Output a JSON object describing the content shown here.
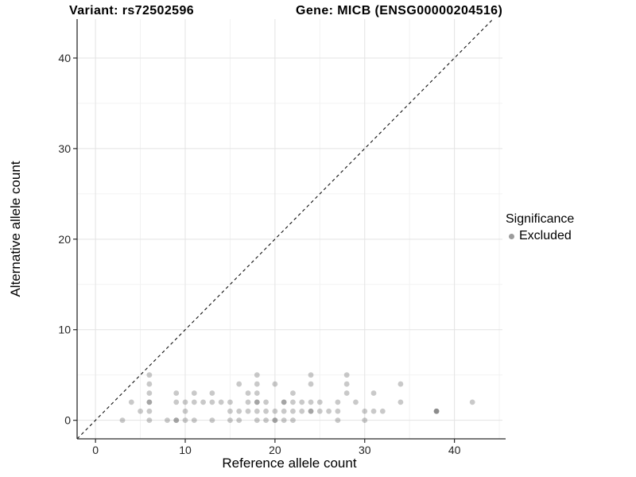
{
  "titles": {
    "variant": "Variant: rs72502596",
    "gene": "Gene: MICB (ENSG00000204516)"
  },
  "legend": {
    "title": "Significance",
    "items": [
      {
        "label": "Excluded",
        "color": "#9b9b9b"
      }
    ]
  },
  "colors": {
    "background": "#ffffff",
    "grid_major": "#e3e3e3",
    "grid_minor": "#f1f1f1",
    "axis_line": "#2b2b2b",
    "tick_text": "#262626",
    "identity_line": "#111111",
    "point_base": "#5a5a5a",
    "point_alpha": 0.33
  },
  "chart_data": {
    "type": "scatter",
    "title": "",
    "xlabel": "Reference allele count",
    "ylabel": "Alternative allele count",
    "xlim": [
      -2.05,
      45.35
    ],
    "ylim": [
      -2.05,
      44.3
    ],
    "x_ticks": [
      0,
      10,
      20,
      30,
      40
    ],
    "y_ticks": [
      0,
      10,
      20,
      30,
      40
    ],
    "x_minor": [
      5,
      15,
      25,
      35,
      45
    ],
    "y_minor": [
      5,
      15,
      25,
      35
    ],
    "grid": true,
    "identity_line": {
      "style": "dashed",
      "slope": 1,
      "intercept": 0
    },
    "legend_position": "right",
    "series": [
      {
        "name": "Excluded",
        "points_format": "[ref_count, alt_count, overlap_n]",
        "points": [
          [
            3,
            0,
            1
          ],
          [
            6,
            0,
            1
          ],
          [
            8,
            0,
            1
          ],
          [
            9,
            0,
            2
          ],
          [
            10,
            0,
            1
          ],
          [
            11,
            0,
            1
          ],
          [
            13,
            0,
            1
          ],
          [
            15,
            0,
            1
          ],
          [
            16,
            0,
            1
          ],
          [
            18,
            0,
            1
          ],
          [
            19,
            0,
            1
          ],
          [
            20,
            0,
            2
          ],
          [
            21,
            0,
            1
          ],
          [
            22,
            0,
            1
          ],
          [
            27,
            0,
            1
          ],
          [
            30,
            0,
            1
          ],
          [
            5,
            1,
            1
          ],
          [
            6,
            1,
            1
          ],
          [
            10,
            1,
            1
          ],
          [
            15,
            1,
            1
          ],
          [
            16,
            1,
            1
          ],
          [
            17,
            1,
            1
          ],
          [
            18,
            1,
            1
          ],
          [
            19,
            1,
            1
          ],
          [
            20,
            1,
            1
          ],
          [
            21,
            1,
            1
          ],
          [
            22,
            1,
            1
          ],
          [
            23,
            1,
            1
          ],
          [
            24,
            1,
            2
          ],
          [
            25,
            1,
            1
          ],
          [
            26,
            1,
            1
          ],
          [
            27,
            1,
            1
          ],
          [
            30,
            1,
            1
          ],
          [
            31,
            1,
            1
          ],
          [
            32,
            1,
            1
          ],
          [
            38,
            1,
            3
          ],
          [
            4,
            2,
            1
          ],
          [
            6,
            2,
            2
          ],
          [
            9,
            2,
            1
          ],
          [
            10,
            2,
            1
          ],
          [
            11,
            2,
            1
          ],
          [
            12,
            2,
            1
          ],
          [
            13,
            2,
            1
          ],
          [
            14,
            2,
            1
          ],
          [
            15,
            2,
            1
          ],
          [
            17,
            2,
            1
          ],
          [
            18,
            2,
            2
          ],
          [
            19,
            2,
            1
          ],
          [
            21,
            2,
            2
          ],
          [
            22,
            2,
            1
          ],
          [
            23,
            2,
            1
          ],
          [
            24,
            2,
            1
          ],
          [
            25,
            2,
            1
          ],
          [
            27,
            2,
            1
          ],
          [
            29,
            2,
            1
          ],
          [
            34,
            2,
            1
          ],
          [
            42,
            2,
            1
          ],
          [
            6,
            3,
            1
          ],
          [
            9,
            3,
            1
          ],
          [
            11,
            3,
            1
          ],
          [
            13,
            3,
            1
          ],
          [
            17,
            3,
            1
          ],
          [
            18,
            3,
            1
          ],
          [
            22,
            3,
            1
          ],
          [
            28,
            3,
            1
          ],
          [
            31,
            3,
            1
          ],
          [
            6,
            4,
            1
          ],
          [
            16,
            4,
            1
          ],
          [
            18,
            4,
            1
          ],
          [
            20,
            4,
            1
          ],
          [
            24,
            4,
            1
          ],
          [
            28,
            4,
            1
          ],
          [
            34,
            4,
            1
          ],
          [
            6,
            5,
            1
          ],
          [
            18,
            5,
            1
          ],
          [
            24,
            5,
            1
          ],
          [
            28,
            5,
            1
          ]
        ]
      }
    ]
  }
}
